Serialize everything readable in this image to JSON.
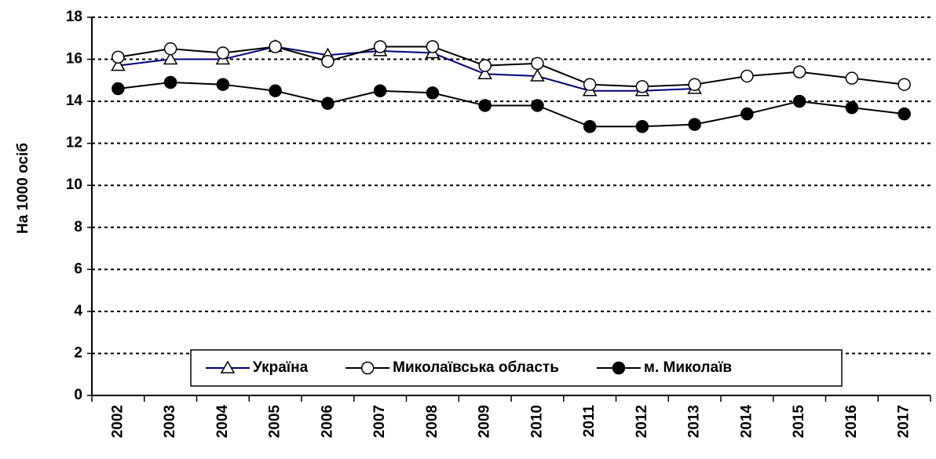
{
  "chart_data": {
    "type": "line",
    "y_label": "На 1000 осіб",
    "categories": [
      "2002",
      "2003",
      "2004",
      "2005",
      "2006",
      "2007",
      "2008",
      "2009",
      "2010",
      "2011",
      "2012",
      "2013",
      "2014",
      "2015",
      "2016",
      "2017"
    ],
    "series": [
      {
        "name": "Україна",
        "color": "#000080",
        "marker": "triangle-open",
        "values": [
          15.7,
          16.0,
          16.0,
          16.6,
          16.2,
          16.4,
          16.3,
          15.3,
          15.2,
          14.5,
          14.5,
          14.6,
          null,
          null,
          null,
          null
        ]
      },
      {
        "name": "Миколаївська область",
        "color": "#000000",
        "marker": "circle-open",
        "values": [
          16.1,
          16.5,
          16.3,
          16.6,
          15.9,
          16.6,
          16.6,
          15.7,
          15.8,
          14.8,
          14.7,
          14.8,
          15.2,
          15.4,
          15.1,
          14.8
        ]
      },
      {
        "name": "м. Миколаїв",
        "color": "#000000",
        "marker": "circle-filled",
        "values": [
          14.6,
          14.9,
          14.8,
          14.5,
          13.9,
          14.5,
          14.4,
          13.8,
          13.8,
          12.8,
          12.8,
          12.9,
          13.4,
          14.0,
          13.7,
          13.4
        ]
      }
    ],
    "ylim": [
      0,
      18
    ],
    "yticks": [
      0,
      2,
      4,
      6,
      8,
      10,
      12,
      14,
      16,
      18
    ],
    "grid": true
  }
}
